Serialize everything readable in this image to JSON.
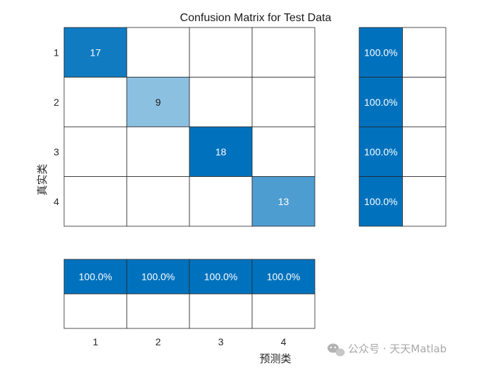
{
  "chart_data": {
    "type": "heatmap",
    "title": "Confusion Matrix for Test Data",
    "xlabel": "预测类",
    "ylabel": "真实类",
    "classes": [
      "1",
      "2",
      "3",
      "4"
    ],
    "matrix": [
      [
        17,
        0,
        0,
        0
      ],
      [
        0,
        9,
        0,
        0
      ],
      [
        0,
        0,
        18,
        0
      ],
      [
        0,
        0,
        0,
        13
      ]
    ],
    "row_summary": {
      "correct": [
        "100.0%",
        "100.0%",
        "100.0%",
        "100.0%"
      ],
      "incorrect": [
        "",
        "",
        "",
        ""
      ]
    },
    "column_summary": {
      "correct": [
        "100.0%",
        "100.0%",
        "100.0%",
        "100.0%"
      ],
      "incorrect": [
        "",
        "",
        "",
        ""
      ]
    },
    "colors": {
      "summary_fill": "#0072bd",
      "high": "#0072bd",
      "low": "#ffffff",
      "grid": "#262626"
    }
  },
  "watermark": {
    "text": "公众号 · 天天Matlab",
    "icon": "wechat-icon"
  }
}
